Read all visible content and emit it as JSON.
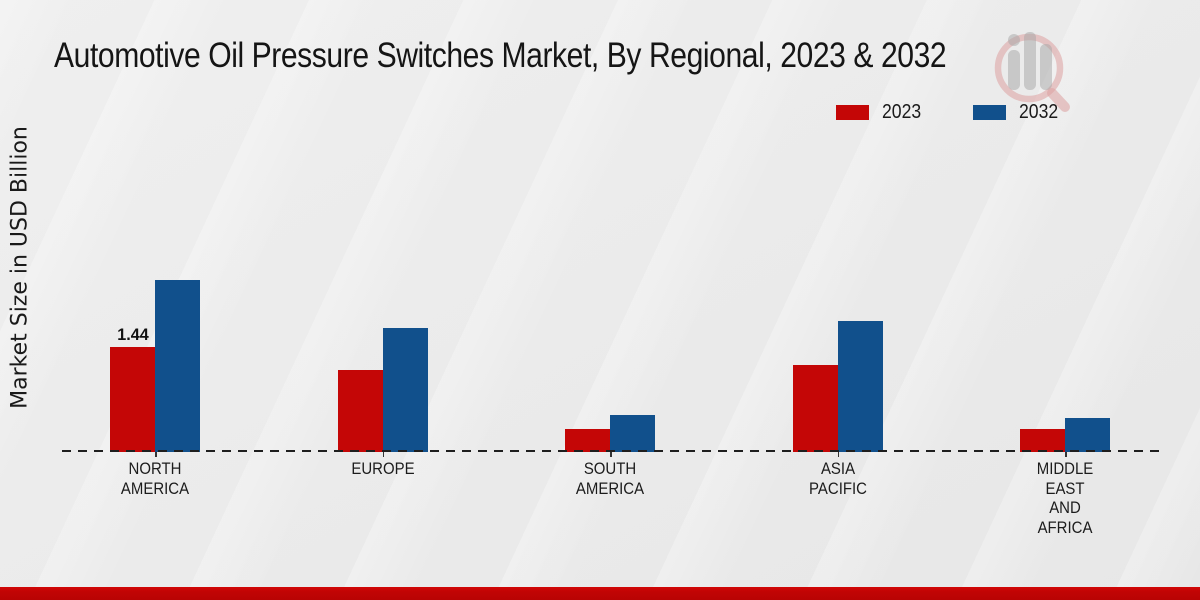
{
  "page": {
    "title": "Automotive Oil Pressure Switches Market, By Regional, 2023 & 2032",
    "y_axis_label": "Market Size in USD Billion",
    "background_color": "#e9e9e9",
    "footer_bar_color": "#c10404",
    "watermark_icon": "magnifier-bar-chart-logo"
  },
  "legend": {
    "items": [
      {
        "label": "2023",
        "color": "#c40606"
      },
      {
        "label": "2032",
        "color": "#11508c"
      }
    ]
  },
  "chart_data": {
    "type": "bar",
    "title": "Automotive Oil Pressure Switches Market, By Regional, 2023 & 2032",
    "xlabel": "",
    "ylabel": "Market Size in USD Billion",
    "unit": "USD Billion",
    "categories": [
      "NORTH AMERICA",
      "EUROPE",
      "SOUTH AMERICA",
      "ASIA PACIFIC",
      "MIDDLE EAST AND AFRICA"
    ],
    "category_label_lines": [
      [
        "NORTH",
        "AMERICA"
      ],
      [
        "EUROPE"
      ],
      [
        "SOUTH",
        "AMERICA"
      ],
      [
        "ASIA",
        "PACIFIC"
      ],
      [
        "MIDDLE",
        "EAST",
        "AND",
        "AFRICA"
      ]
    ],
    "series": [
      {
        "name": "2023",
        "color": "#c40606",
        "values": [
          1.44,
          1.12,
          0.32,
          1.19,
          0.32
        ]
      },
      {
        "name": "2032",
        "color": "#11508c",
        "values": [
          2.36,
          1.7,
          0.51,
          1.8,
          0.47
        ]
      }
    ],
    "value_labels": [
      {
        "category": "NORTH AMERICA",
        "series": "2023",
        "text": "1.44"
      }
    ],
    "baseline_style": "dashed",
    "gridlines": false,
    "legend_position": "top-right",
    "ylim": [
      0,
      2.6
    ]
  }
}
